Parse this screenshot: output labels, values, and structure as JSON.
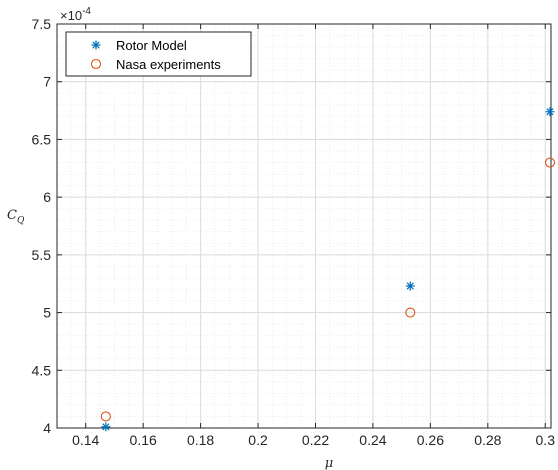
{
  "chart_data": {
    "type": "scatter",
    "xlabel": "μ",
    "ylabel": "C",
    "ylabel_subscript": "Q",
    "y_exponent_label": "×10",
    "y_exponent_power": "-4",
    "xlim": [
      0.13,
      0.302
    ],
    "ylim": [
      4.0,
      7.5
    ],
    "x_ticks": [
      0.14,
      0.16,
      0.18,
      0.2,
      0.22,
      0.24,
      0.26,
      0.28,
      0.3
    ],
    "x_tick_labels": [
      "0.14",
      "0.16",
      "0.18",
      "0.2",
      "0.22",
      "0.24",
      "0.26",
      "0.28",
      "0.3"
    ],
    "y_ticks": [
      4,
      4.5,
      5,
      5.5,
      6,
      6.5,
      7,
      7.5
    ],
    "y_tick_labels": [
      "4",
      "4.5",
      "5",
      "5.5",
      "6",
      "6.5",
      "7",
      "7.5"
    ],
    "grid": true,
    "minor_grid": true,
    "legend_position": "top-left",
    "series": [
      {
        "name": "Rotor Model",
        "marker": "asterisk",
        "color": "#0072BD",
        "points": [
          {
            "x": 0.147,
            "y": 4.01
          },
          {
            "x": 0.253,
            "y": 5.23
          },
          {
            "x": 0.302,
            "y": 6.74
          }
        ]
      },
      {
        "name": "Nasa experiments",
        "marker": "circle",
        "color": "#D95319",
        "points": [
          {
            "x": 0.147,
            "y": 4.1
          },
          {
            "x": 0.253,
            "y": 5.0
          },
          {
            "x": 0.302,
            "y": 6.3
          }
        ]
      }
    ]
  }
}
